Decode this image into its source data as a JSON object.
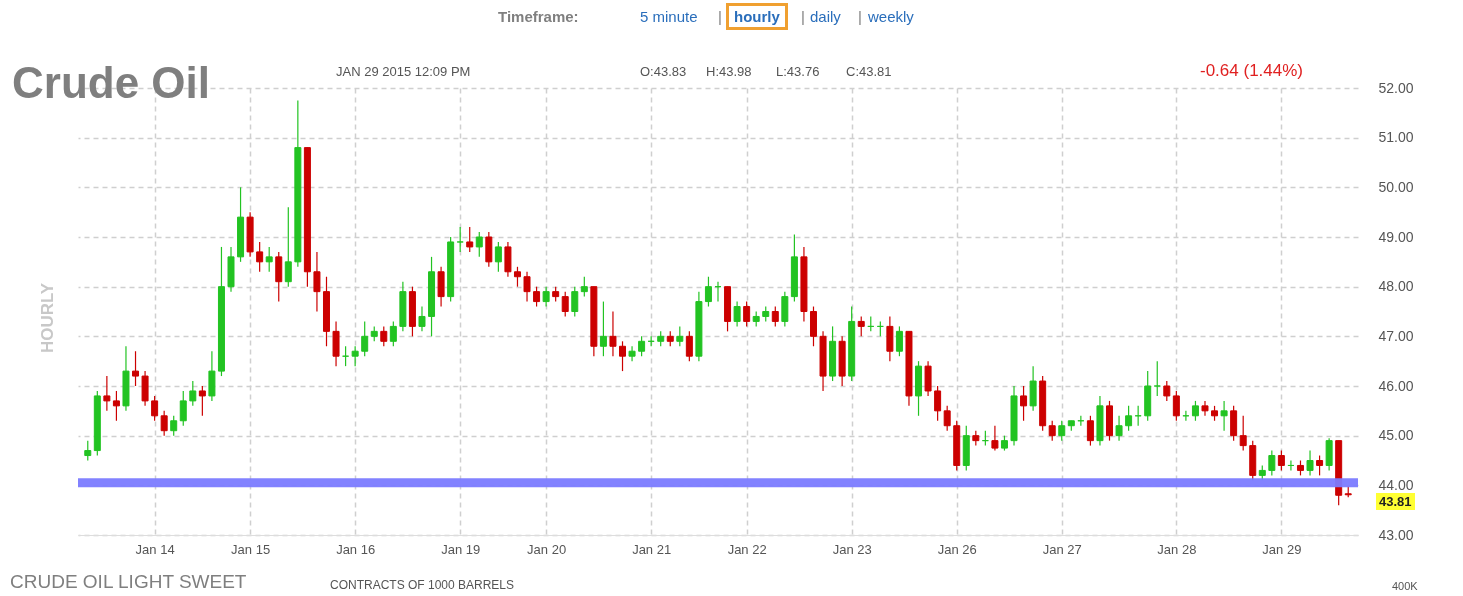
{
  "chart_data": {
    "type": "candlestick",
    "title": "Crude Oil",
    "ylabel": "HOURLY",
    "categories": [
      null,
      null,
      null,
      null,
      null,
      null,
      null,
      "Jan 14",
      null,
      null,
      null,
      null,
      null,
      null,
      null,
      null,
      null,
      "Jan 15",
      null,
      null,
      null,
      null,
      null,
      null,
      null,
      null,
      null,
      null,
      "Jan 16",
      null,
      null,
      null,
      null,
      null,
      null,
      null,
      null,
      null,
      null,
      "Jan 19",
      null,
      null,
      null,
      null,
      null,
      null,
      null,
      null,
      "Jan 20",
      null,
      null,
      null,
      null,
      null,
      null,
      null,
      null,
      null,
      null,
      "Jan 21",
      null,
      null,
      null,
      null,
      null,
      null,
      null,
      null,
      null,
      "Jan 22",
      null,
      null,
      null,
      null,
      null,
      null,
      null,
      null,
      null,
      null,
      "Jan 23",
      null,
      null,
      null,
      null,
      null,
      null,
      null,
      null,
      null,
      null,
      "Jan 26",
      null,
      null,
      null,
      null,
      null,
      null,
      null,
      null,
      null,
      null,
      "Jan 27",
      null,
      null,
      null,
      null,
      null,
      null,
      null,
      null,
      null,
      null,
      null,
      "Jan 28",
      null,
      null,
      null,
      null,
      null,
      null,
      null,
      null,
      null,
      null,
      "Jan 29",
      null,
      null,
      null,
      null,
      null,
      null,
      null
    ],
    "ohlc": [
      [
        44.6,
        44.9,
        44.5,
        44.7
      ],
      [
        44.7,
        45.9,
        44.6,
        45.8
      ],
      [
        45.8,
        46.2,
        45.5,
        45.7
      ],
      [
        45.7,
        45.9,
        45.3,
        45.6
      ],
      [
        45.6,
        46.8,
        45.5,
        46.3
      ],
      [
        46.3,
        46.7,
        46.0,
        46.2
      ],
      [
        46.2,
        46.3,
        45.6,
        45.7
      ],
      [
        45.7,
        45.8,
        45.3,
        45.4
      ],
      [
        45.4,
        45.5,
        45.0,
        45.1
      ],
      [
        45.1,
        45.4,
        45.0,
        45.3
      ],
      [
        45.3,
        45.9,
        45.2,
        45.7
      ],
      [
        45.7,
        46.1,
        45.6,
        45.9
      ],
      [
        45.9,
        46.0,
        45.4,
        45.8
      ],
      [
        45.8,
        46.7,
        45.7,
        46.3
      ],
      [
        46.3,
        48.8,
        46.2,
        48.0
      ],
      [
        48.0,
        48.8,
        47.9,
        48.6
      ],
      [
        48.6,
        50.0,
        48.5,
        49.4
      ],
      [
        49.4,
        49.5,
        48.6,
        48.7
      ],
      [
        48.7,
        48.9,
        48.3,
        48.5
      ],
      [
        48.5,
        48.8,
        48.3,
        48.6
      ],
      [
        48.6,
        48.7,
        47.7,
        48.1
      ],
      [
        48.1,
        49.6,
        48.0,
        48.5
      ],
      [
        48.5,
        51.75,
        48.4,
        50.8
      ],
      [
        50.8,
        50.8,
        48.0,
        48.3
      ],
      [
        48.3,
        48.7,
        47.5,
        47.9
      ],
      [
        47.9,
        48.2,
        46.8,
        47.1
      ],
      [
        47.1,
        47.3,
        46.4,
        46.6
      ],
      [
        46.6,
        46.8,
        46.4,
        46.6
      ],
      [
        46.6,
        46.8,
        46.4,
        46.7
      ],
      [
        46.7,
        47.3,
        46.6,
        47.0
      ],
      [
        47.0,
        47.2,
        46.9,
        47.1
      ],
      [
        47.1,
        47.2,
        46.8,
        46.9
      ],
      [
        46.9,
        47.3,
        46.8,
        47.2
      ],
      [
        47.2,
        48.1,
        47.1,
        47.9
      ],
      [
        47.9,
        48.0,
        47.0,
        47.2
      ],
      [
        47.2,
        47.6,
        47.1,
        47.4
      ],
      [
        47.4,
        48.6,
        47.0,
        48.3
      ],
      [
        48.3,
        48.4,
        47.6,
        47.8
      ],
      [
        47.8,
        49.0,
        47.7,
        48.9
      ],
      [
        48.9,
        49.2,
        48.7,
        48.9
      ],
      [
        48.9,
        49.2,
        48.7,
        48.8
      ],
      [
        48.8,
        49.1,
        48.6,
        49.0
      ],
      [
        49.0,
        49.1,
        48.4,
        48.5
      ],
      [
        48.5,
        48.9,
        48.3,
        48.8
      ],
      [
        48.8,
        48.9,
        48.2,
        48.3
      ],
      [
        48.3,
        48.4,
        48.0,
        48.2
      ],
      [
        48.2,
        48.3,
        47.7,
        47.9
      ],
      [
        47.9,
        48.0,
        47.6,
        47.7
      ],
      [
        47.7,
        48.0,
        47.6,
        47.9
      ],
      [
        47.9,
        48.0,
        47.7,
        47.8
      ],
      [
        47.8,
        47.9,
        47.4,
        47.5
      ],
      [
        47.5,
        48.0,
        47.4,
        47.9
      ],
      [
        47.9,
        48.2,
        47.8,
        48.0
      ],
      [
        48.0,
        48.0,
        46.6,
        46.8
      ],
      [
        46.8,
        47.7,
        46.6,
        47.0
      ],
      [
        47.0,
        47.5,
        46.6,
        46.8
      ],
      [
        46.8,
        46.9,
        46.3,
        46.6
      ],
      [
        46.6,
        46.8,
        46.5,
        46.7
      ],
      [
        46.7,
        47.0,
        46.6,
        46.9
      ],
      [
        46.9,
        47.0,
        46.8,
        46.9
      ],
      [
        46.9,
        47.1,
        46.8,
        47.0
      ],
      [
        47.0,
        47.1,
        46.8,
        46.9
      ],
      [
        46.9,
        47.2,
        46.8,
        47.0
      ],
      [
        47.0,
        47.1,
        46.5,
        46.6
      ],
      [
        46.6,
        47.9,
        46.5,
        47.7
      ],
      [
        47.7,
        48.2,
        47.6,
        48.0
      ],
      [
        48.0,
        48.1,
        47.7,
        48.0
      ],
      [
        48.0,
        48.0,
        47.1,
        47.3
      ],
      [
        47.3,
        47.7,
        47.2,
        47.6
      ],
      [
        47.6,
        47.7,
        47.2,
        47.3
      ],
      [
        47.3,
        47.5,
        47.2,
        47.4
      ],
      [
        47.4,
        47.6,
        47.3,
        47.5
      ],
      [
        47.5,
        47.6,
        47.2,
        47.3
      ],
      [
        47.3,
        47.9,
        47.2,
        47.8
      ],
      [
        47.8,
        49.05,
        47.7,
        48.6
      ],
      [
        48.6,
        48.8,
        47.3,
        47.5
      ],
      [
        47.5,
        47.6,
        46.8,
        47.0
      ],
      [
        47.0,
        47.1,
        45.9,
        46.2
      ],
      [
        46.2,
        47.2,
        46.1,
        46.9
      ],
      [
        46.9,
        47.0,
        46.0,
        46.2
      ],
      [
        46.2,
        47.6,
        46.1,
        47.3
      ],
      [
        47.3,
        47.4,
        47.0,
        47.2
      ],
      [
        47.2,
        47.4,
        47.1,
        47.2
      ],
      [
        47.2,
        47.3,
        47.0,
        47.2
      ],
      [
        47.2,
        47.4,
        46.5,
        46.7
      ],
      [
        46.7,
        47.2,
        46.6,
        47.1
      ],
      [
        47.1,
        47.1,
        45.6,
        45.8
      ],
      [
        45.8,
        46.5,
        45.4,
        46.4
      ],
      [
        46.4,
        46.5,
        45.8,
        45.9
      ],
      [
        45.9,
        46.0,
        45.3,
        45.5
      ],
      [
        45.5,
        45.6,
        45.1,
        45.2
      ],
      [
        45.2,
        45.3,
        44.3,
        44.4
      ],
      [
        44.4,
        45.2,
        44.3,
        45.0
      ],
      [
        45.0,
        45.1,
        44.8,
        44.9
      ],
      [
        44.9,
        45.1,
        44.8,
        44.9
      ],
      [
        44.9,
        45.2,
        44.7,
        44.75
      ],
      [
        44.75,
        45.0,
        44.7,
        44.9
      ],
      [
        44.9,
        46.0,
        44.8,
        45.8
      ],
      [
        45.8,
        46.0,
        45.3,
        45.6
      ],
      [
        45.6,
        46.4,
        45.5,
        46.1
      ],
      [
        46.1,
        46.2,
        45.1,
        45.2
      ],
      [
        45.2,
        45.3,
        44.9,
        45.0
      ],
      [
        45.0,
        45.3,
        44.9,
        45.2
      ],
      [
        45.2,
        45.3,
        45.1,
        45.3
      ],
      [
        45.3,
        45.4,
        45.2,
        45.3
      ],
      [
        45.3,
        45.4,
        44.8,
        44.9
      ],
      [
        44.9,
        45.8,
        44.8,
        45.6
      ],
      [
        45.6,
        45.7,
        44.9,
        45.0
      ],
      [
        45.0,
        45.4,
        44.9,
        45.2
      ],
      [
        45.2,
        45.6,
        45.1,
        45.4
      ],
      [
        45.4,
        45.6,
        45.2,
        45.4
      ],
      [
        45.4,
        46.3,
        45.3,
        46.0
      ],
      [
        46.0,
        46.5,
        45.8,
        46.0
      ],
      [
        46.0,
        46.1,
        45.7,
        45.8
      ],
      [
        45.8,
        45.9,
        45.3,
        45.4
      ],
      [
        45.4,
        45.5,
        45.3,
        45.4
      ],
      [
        45.4,
        45.7,
        45.3,
        45.6
      ],
      [
        45.6,
        45.7,
        45.4,
        45.5
      ],
      [
        45.5,
        45.6,
        45.3,
        45.4
      ],
      [
        45.4,
        45.7,
        45.1,
        45.5
      ],
      [
        45.5,
        45.6,
        44.9,
        45.0
      ],
      [
        45.0,
        45.4,
        44.7,
        44.8
      ],
      [
        44.8,
        44.9,
        44.1,
        44.2
      ],
      [
        44.2,
        44.4,
        44.1,
        44.3
      ],
      [
        44.3,
        44.7,
        44.2,
        44.6
      ],
      [
        44.6,
        44.7,
        44.3,
        44.4
      ],
      [
        44.4,
        44.5,
        44.3,
        44.4
      ],
      [
        44.4,
        44.5,
        44.2,
        44.3
      ],
      [
        44.3,
        44.7,
        44.2,
        44.5
      ],
      [
        44.5,
        44.6,
        44.2,
        44.4
      ],
      [
        44.4,
        44.95,
        44.3,
        44.9
      ],
      [
        44.9,
        44.9,
        43.6,
        43.8
      ],
      [
        43.83,
        43.98,
        43.76,
        43.81
      ]
    ],
    "colors": [
      "#22c322",
      "#22c322",
      "#cc0000",
      "#cc0000",
      "#22c322",
      "#cc0000",
      "#cc0000",
      "#cc0000",
      "#cc0000",
      "#22c322",
      "#22c322",
      "#22c322",
      "#cc0000",
      "#22c322",
      "#22c322",
      "#22c322",
      "#22c322",
      "#cc0000",
      "#cc0000",
      "#22c322",
      "#cc0000",
      "#22c322",
      "#22c322",
      "#cc0000",
      "#cc0000",
      "#cc0000",
      "#cc0000",
      "#22c322",
      "#22c322",
      "#22c322",
      "#22c322",
      "#cc0000",
      "#22c322",
      "#22c322",
      "#cc0000",
      "#22c322",
      "#22c322",
      "#cc0000",
      "#22c322",
      "#22c322",
      "#cc0000",
      "#22c322",
      "#cc0000",
      "#22c322",
      "#cc0000",
      "#cc0000",
      "#cc0000",
      "#cc0000",
      "#22c322",
      "#cc0000",
      "#cc0000",
      "#22c322",
      "#22c322",
      "#cc0000",
      "#22c322",
      "#cc0000",
      "#cc0000",
      "#22c322",
      "#22c322",
      "#22c322",
      "#22c322",
      "#cc0000",
      "#22c322",
      "#cc0000",
      "#22c322",
      "#22c322",
      "#22c322",
      "#cc0000",
      "#22c322",
      "#cc0000",
      "#22c322",
      "#22c322",
      "#cc0000",
      "#22c322",
      "#22c322",
      "#cc0000",
      "#cc0000",
      "#cc0000",
      "#22c322",
      "#cc0000",
      "#22c322",
      "#cc0000",
      "#22c322",
      "#22c322",
      "#cc0000",
      "#22c322",
      "#cc0000",
      "#22c322",
      "#cc0000",
      "#cc0000",
      "#cc0000",
      "#cc0000",
      "#22c322",
      "#cc0000",
      "#22c322",
      "#cc0000",
      "#22c322",
      "#22c322",
      "#cc0000",
      "#22c322",
      "#cc0000",
      "#cc0000",
      "#22c322",
      "#22c322",
      "#22c322",
      "#cc0000",
      "#22c322",
      "#cc0000",
      "#22c322",
      "#22c322",
      "#22c322",
      "#22c322",
      "#22c322",
      "#cc0000",
      "#cc0000",
      "#22c322",
      "#22c322",
      "#cc0000",
      "#cc0000",
      "#22c322",
      "#cc0000",
      "#cc0000",
      "#cc0000",
      "#22c322",
      "#22c322",
      "#cc0000",
      "#22c322",
      "#cc0000",
      "#22c322",
      "#cc0000",
      "#22c322",
      "#cc0000",
      "#cc0000"
    ],
    "ylim": [
      43,
      52
    ],
    "yticks": [
      {
        "value": 43,
        "label": "43.00"
      },
      {
        "value": 44,
        "label": "44.00"
      },
      {
        "value": 45,
        "label": "45.00"
      },
      {
        "value": 46,
        "label": "46.00"
      },
      {
        "value": 47,
        "label": "47.00"
      },
      {
        "value": 48,
        "label": "48.00"
      },
      {
        "value": 49,
        "label": "49.00"
      },
      {
        "value": 50,
        "label": "50.00"
      },
      {
        "value": 51,
        "label": "51.00"
      },
      {
        "value": 52,
        "label": "52.00"
      }
    ],
    "grid": true,
    "ref_lines": [
      {
        "axis": "y",
        "value": 44.05,
        "color": "#7b7bff"
      }
    ],
    "annotations": [
      "Timeframe:",
      "5 minute",
      "|",
      "hourly",
      "|",
      "daily",
      "|",
      "weekly",
      "JAN 29 2015 12:09 PM",
      "O:43.83",
      "H:43.98",
      "L:43.76",
      "C:43.81",
      "-0.64 (1.44%)",
      "43.81",
      "CRUDE OIL LIGHT SWEET",
      "CONTRACTS OF 1000 BARRELS",
      "400K"
    ]
  }
}
